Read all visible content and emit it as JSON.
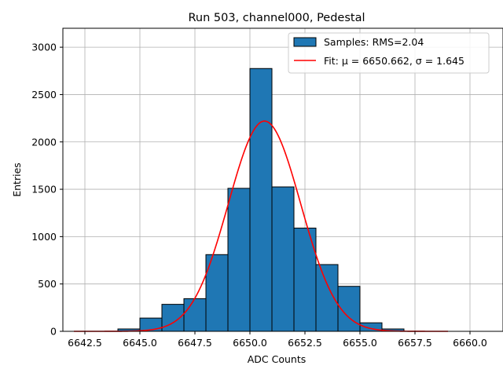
{
  "chart_data": {
    "type": "bar",
    "title": "Run 503, channel000, Pedestal",
    "xlabel": "ADC Counts",
    "ylabel": "Entries",
    "xlim": [
      6641.5,
      6661.5
    ],
    "ylim": [
      0,
      3200
    ],
    "xticks": [
      6642.5,
      6645.0,
      6647.5,
      6650.0,
      6652.5,
      6655.0,
      6657.5,
      6660.0
    ],
    "xtick_labels": [
      "6642.5",
      "6645.0",
      "6647.5",
      "6650.0",
      "6652.5",
      "6655.0",
      "6657.5",
      "6660.0"
    ],
    "yticks": [
      0,
      500,
      1000,
      1500,
      2000,
      2500,
      3000
    ],
    "ytick_labels": [
      "0",
      "500",
      "1000",
      "1500",
      "2000",
      "2500",
      "3000"
    ],
    "grid": true,
    "bins": [
      {
        "x0": 6644.0,
        "x1": 6645.0,
        "count": 25
      },
      {
        "x0": 6645.0,
        "x1": 6646.0,
        "count": 140
      },
      {
        "x0": 6646.0,
        "x1": 6647.0,
        "count": 285
      },
      {
        "x0": 6647.0,
        "x1": 6648.0,
        "count": 345
      },
      {
        "x0": 6648.0,
        "x1": 6649.0,
        "count": 810
      },
      {
        "x0": 6649.0,
        "x1": 6650.0,
        "count": 1510
      },
      {
        "x0": 6650.0,
        "x1": 6651.0,
        "count": 2775
      },
      {
        "x0": 6651.0,
        "x1": 6652.0,
        "count": 1525
      },
      {
        "x0": 6652.0,
        "x1": 6653.0,
        "count": 1090
      },
      {
        "x0": 6653.0,
        "x1": 6654.0,
        "count": 705
      },
      {
        "x0": 6654.0,
        "x1": 6655.0,
        "count": 475
      },
      {
        "x0": 6655.0,
        "x1": 6656.0,
        "count": 90
      },
      {
        "x0": 6656.0,
        "x1": 6657.0,
        "count": 25
      }
    ],
    "fit": {
      "mu": 6650.662,
      "sigma": 1.645,
      "amplitude": 2220,
      "x_range": [
        6642.0,
        6659.0
      ]
    },
    "series": [
      {
        "name": "Samples: RMS=2.04",
        "kind": "histogram",
        "color": "#1f77b4"
      },
      {
        "name": "Fit: μ = 6650.662, σ = 1.645",
        "kind": "line",
        "color": "#ff0000"
      }
    ],
    "legend_position": "top-right"
  }
}
